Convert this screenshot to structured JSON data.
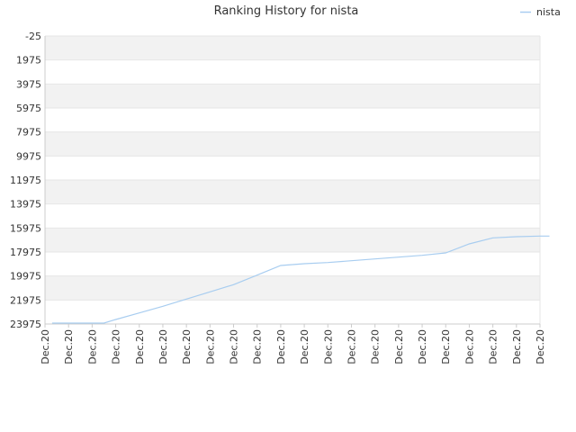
{
  "chart_data": {
    "type": "line",
    "title": "Ranking History for nista",
    "xlabel": "",
    "ylabel": "",
    "y_reversed": true,
    "ylim": [
      -25,
      23975
    ],
    "yticks": [
      -25,
      1975,
      3975,
      5975,
      7975,
      9975,
      11975,
      13975,
      15975,
      17975,
      19975,
      21975,
      23975
    ],
    "x_tick_labels": [
      "Dec.20",
      "Dec.20",
      "Dec.20",
      "Dec.20",
      "Dec.20",
      "Dec.20",
      "Dec.20",
      "Dec.20",
      "Dec.20",
      "Dec.20",
      "Dec.20",
      "Dec.20",
      "Dec.20",
      "Dec.20",
      "Dec.20",
      "Dec.20",
      "Dec.20",
      "Dec.20",
      "Dec.20",
      "Dec.20",
      "Dec.20",
      "Dec.20"
    ],
    "grid": true,
    "alternating_bands": true,
    "legend": {
      "position": "top-right"
    },
    "series": [
      {
        "name": "nista",
        "color": "#a8cdf0",
        "x_index": [
          0.3,
          1,
          2,
          2.5,
          3,
          4,
          5,
          6,
          7,
          8,
          9,
          10,
          11,
          12,
          13,
          14,
          15,
          16,
          17,
          18,
          19,
          20,
          21,
          21.4
        ],
        "values": [
          23900,
          23900,
          23900,
          23900,
          23600,
          23050,
          22500,
          21900,
          21300,
          20700,
          19900,
          19100,
          18950,
          18850,
          18700,
          18550,
          18400,
          18250,
          18050,
          17300,
          16800,
          16700,
          16650,
          16650
        ]
      }
    ],
    "colors": {
      "band": "#f2f2f2",
      "grid": "#e6e6e6",
      "axis": "#cccccc",
      "text": "#333333"
    }
  }
}
